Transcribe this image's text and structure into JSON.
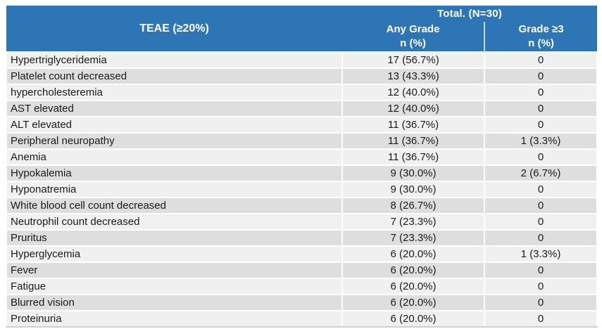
{
  "chart_data": {
    "type": "table",
    "title": "TEAE (≥20%)",
    "header": {
      "row_label_column": "TEAE (≥20%)",
      "group_header": "Total. (N=30)",
      "subcolumns": [
        {
          "label": "Any Grade",
          "unit": "n (%)"
        },
        {
          "label": "Grade ≥3",
          "unit": "n (%)"
        }
      ]
    },
    "rows": [
      {
        "teae": "Hypertriglyceridemia",
        "any_grade": "17 (56.7%)",
        "grade_ge3": "0"
      },
      {
        "teae": "Platelet count decreased",
        "any_grade": "13 (43.3%)",
        "grade_ge3": "0"
      },
      {
        "teae": "hypercholesteremia",
        "any_grade": "12 (40.0%)",
        "grade_ge3": "0"
      },
      {
        "teae": "AST elevated",
        "any_grade": "12 (40.0%)",
        "grade_ge3": "0"
      },
      {
        "teae": "ALT elevated",
        "any_grade": "11 (36.7%)",
        "grade_ge3": "0"
      },
      {
        "teae": "Peripheral neuropathy",
        "any_grade": "11 (36.7%)",
        "grade_ge3": "1 (3.3%)"
      },
      {
        "teae": "Anemia",
        "any_grade": "11 (36.7%)",
        "grade_ge3": "0"
      },
      {
        "teae": "Hypokalemia",
        "any_grade": "9 (30.0%)",
        "grade_ge3": "2 (6.7%)"
      },
      {
        "teae": "Hyponatremia",
        "any_grade": "9 (30.0%)",
        "grade_ge3": "0"
      },
      {
        "teae": "White blood cell count decreased",
        "any_grade": "8 (26.7%)",
        "grade_ge3": "0"
      },
      {
        "teae": "Neutrophil count decreased",
        "any_grade": "7 (23.3%)",
        "grade_ge3": "0"
      },
      {
        "teae": "Pruritus",
        "any_grade": "7 (23.3%)",
        "grade_ge3": "0"
      },
      {
        "teae": "Hyperglycemia",
        "any_grade": "6 (20.0%)",
        "grade_ge3": "1 (3.3%)"
      },
      {
        "teae": "Fever",
        "any_grade": "6 (20.0%)",
        "grade_ge3": "0"
      },
      {
        "teae": "Fatigue",
        "any_grade": "6 (20.0%)",
        "grade_ge3": "0"
      },
      {
        "teae": "Blurred vision",
        "any_grade": "6 (20.0%)",
        "grade_ge3": "0"
      },
      {
        "teae": "Proteinuria",
        "any_grade": "6 (20.0%)",
        "grade_ge3": "0"
      }
    ]
  },
  "colors": {
    "header_bg": "#2E75B5",
    "header_text": "#FFFFFF",
    "header_divider": "#C5D9EC",
    "row_light": "#F0F0F0",
    "row_dark": "#DEDEDE",
    "grid_line": "#FFFFFF",
    "body_text": "#1A1A1A",
    "bottom_rule": "#CFCFCF"
  }
}
